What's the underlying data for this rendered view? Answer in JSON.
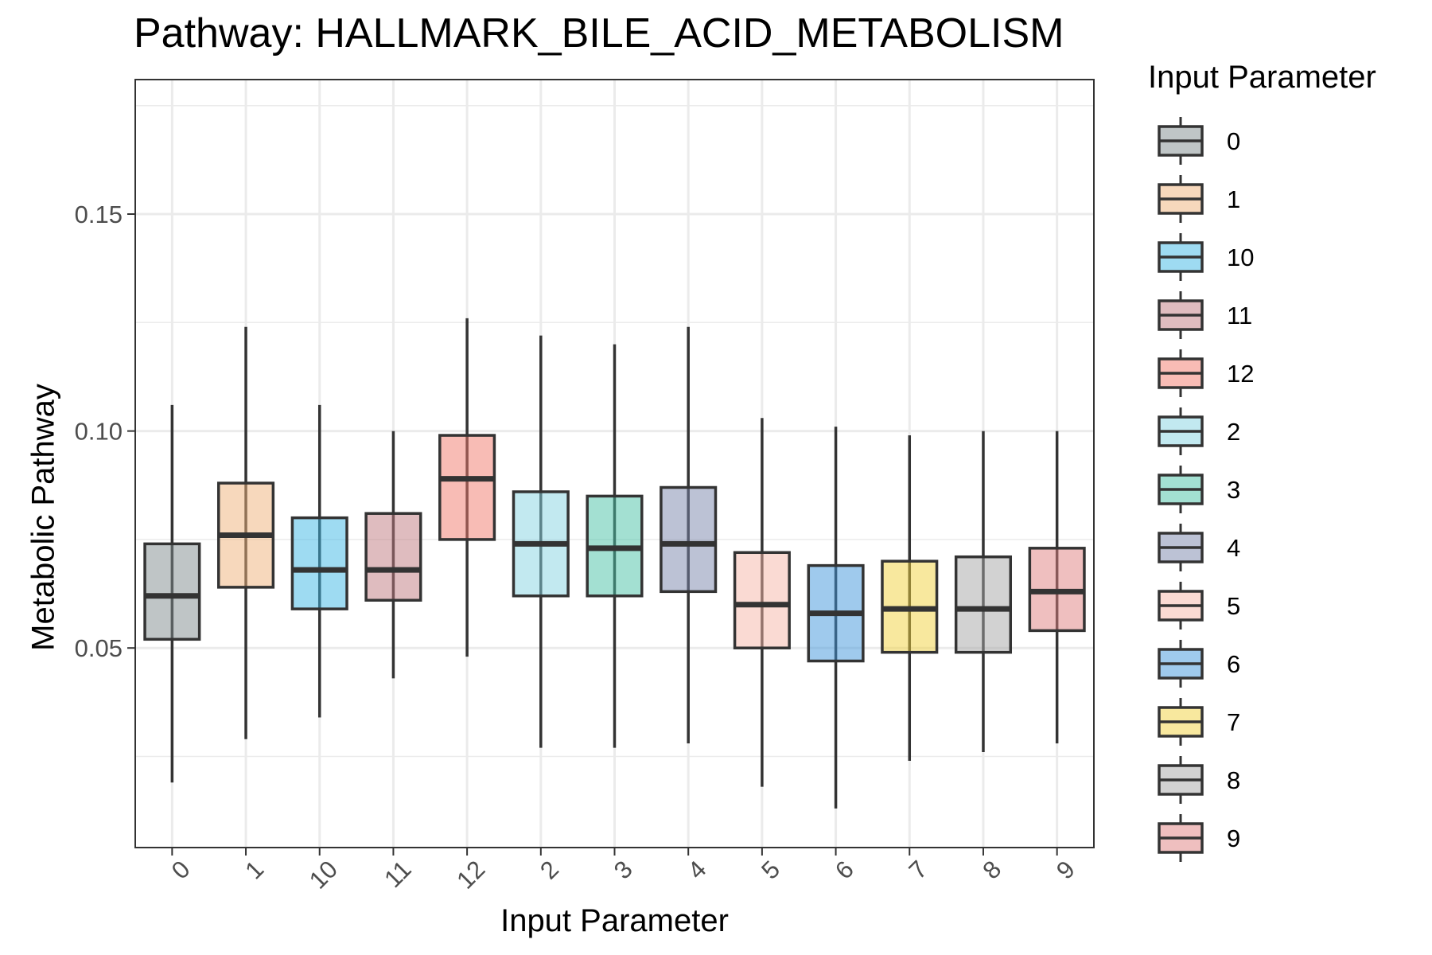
{
  "chart_data": {
    "type": "box",
    "title": "Pathway: HALLMARK_BILE_ACID_METABOLISM",
    "xlabel": "Input Parameter",
    "ylabel": "Metabolic Pathway",
    "legend_title": "Input Parameter",
    "legend_position": "right",
    "grid": true,
    "ylim": [
      0.004,
      0.181
    ],
    "yticks": [
      0.05,
      0.1,
      0.15
    ],
    "ytick_labels": [
      "0.05",
      "0.10",
      "0.15"
    ],
    "categories": [
      "0",
      "1",
      "10",
      "11",
      "12",
      "2",
      "3",
      "4",
      "5",
      "6",
      "7",
      "8",
      "9"
    ],
    "colors": [
      "#7F8C8D",
      "#F0B27A",
      "#3DB8E5",
      "#C07A80",
      "#F1796B",
      "#85D3E2",
      "#48C2A6",
      "#7986AB",
      "#F6B6A8",
      "#3F96DB",
      "#F2D13E",
      "#A6A6A6",
      "#E08080"
    ],
    "boxes": [
      {
        "category": "0",
        "whisker_low": 0.019,
        "q1": 0.052,
        "median": 0.062,
        "q3": 0.074,
        "whisker_high": 0.106
      },
      {
        "category": "1",
        "whisker_low": 0.029,
        "q1": 0.064,
        "median": 0.076,
        "q3": 0.088,
        "whisker_high": 0.124
      },
      {
        "category": "10",
        "whisker_low": 0.034,
        "q1": 0.059,
        "median": 0.068,
        "q3": 0.08,
        "whisker_high": 0.106
      },
      {
        "category": "11",
        "whisker_low": 0.043,
        "q1": 0.061,
        "median": 0.068,
        "q3": 0.081,
        "whisker_high": 0.1
      },
      {
        "category": "12",
        "whisker_low": 0.048,
        "q1": 0.075,
        "median": 0.089,
        "q3": 0.099,
        "whisker_high": 0.126
      },
      {
        "category": "2",
        "whisker_low": 0.027,
        "q1": 0.062,
        "median": 0.074,
        "q3": 0.086,
        "whisker_high": 0.122
      },
      {
        "category": "3",
        "whisker_low": 0.027,
        "q1": 0.062,
        "median": 0.073,
        "q3": 0.085,
        "whisker_high": 0.12
      },
      {
        "category": "4",
        "whisker_low": 0.028,
        "q1": 0.063,
        "median": 0.074,
        "q3": 0.087,
        "whisker_high": 0.124
      },
      {
        "category": "5",
        "whisker_low": 0.018,
        "q1": 0.05,
        "median": 0.06,
        "q3": 0.072,
        "whisker_high": 0.103
      },
      {
        "category": "6",
        "whisker_low": 0.013,
        "q1": 0.047,
        "median": 0.058,
        "q3": 0.069,
        "whisker_high": 0.101
      },
      {
        "category": "7",
        "whisker_low": 0.024,
        "q1": 0.049,
        "median": 0.059,
        "q3": 0.07,
        "whisker_high": 0.099
      },
      {
        "category": "8",
        "whisker_low": 0.026,
        "q1": 0.049,
        "median": 0.059,
        "q3": 0.071,
        "whisker_high": 0.1
      },
      {
        "category": "9",
        "whisker_low": 0.028,
        "q1": 0.054,
        "median": 0.063,
        "q3": 0.073,
        "whisker_high": 0.1
      }
    ]
  }
}
